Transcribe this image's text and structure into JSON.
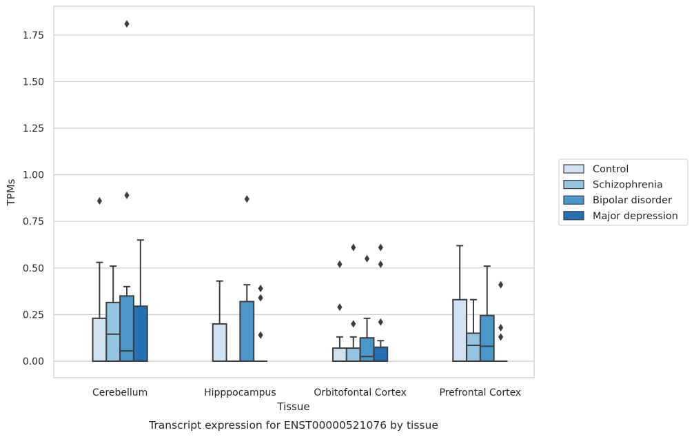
{
  "chart_data": {
    "type": "boxplot",
    "caption": "Transcript expression for ENST00000521076 by tissue",
    "xlabel": "Tissue",
    "ylabel": "TPMs",
    "ylim": [
      -0.09,
      1.93
    ],
    "yticks": [
      "0.00",
      "0.25",
      "0.50",
      "0.75",
      "1.00",
      "1.25",
      "1.50",
      "1.75"
    ],
    "grid": "horizontal",
    "legend_position": "right",
    "categories": [
      "Cerebellum",
      "Hipppocampus",
      "Orbitofontal Cortex",
      "Prefrontal Cortex"
    ],
    "series": [
      {
        "name": "Control",
        "color": "#d0e1f2",
        "boxes": [
          {
            "q1": 0.0,
            "median": 0.0,
            "q3": 0.23,
            "whisker_low": 0.0,
            "whisker_high": 0.53,
            "outliers": [
              0.86
            ]
          },
          {
            "q1": 0.0,
            "median": 0.0,
            "q3": 0.2,
            "whisker_low": 0.0,
            "whisker_high": 0.43,
            "outliers": []
          },
          {
            "q1": 0.0,
            "median": 0.0,
            "q3": 0.07,
            "whisker_low": 0.0,
            "whisker_high": 0.13,
            "outliers": [
              0.29,
              0.52
            ]
          },
          {
            "q1": 0.0,
            "median": 0.0,
            "q3": 0.33,
            "whisker_low": 0.0,
            "whisker_high": 0.62,
            "outliers": []
          }
        ]
      },
      {
        "name": "Schizophrenia",
        "color": "#94c4df",
        "boxes": [
          {
            "q1": 0.0,
            "median": 0.145,
            "q3": 0.315,
            "whisker_low": 0.0,
            "whisker_high": 0.51,
            "outliers": []
          },
          {
            "q1": 0.0,
            "median": 0.0,
            "q3": 0.0,
            "whisker_low": 0.0,
            "whisker_high": 0.0,
            "outliers": []
          },
          {
            "q1": 0.0,
            "median": 0.0,
            "q3": 0.07,
            "whisker_low": 0.0,
            "whisker_high": 0.13,
            "outliers": [
              0.2,
              0.61
            ]
          },
          {
            "q1": 0.0,
            "median": 0.085,
            "q3": 0.15,
            "whisker_low": 0.0,
            "whisker_high": 0.33,
            "outliers": []
          }
        ]
      },
      {
        "name": "Bipolar disorder",
        "color": "#4a98c9",
        "boxes": [
          {
            "q1": 0.0,
            "median": 0.055,
            "q3": 0.35,
            "whisker_low": 0.0,
            "whisker_high": 0.4,
            "outliers": [
              0.89,
              1.81
            ]
          },
          {
            "q1": 0.0,
            "median": 0.0,
            "q3": 0.32,
            "whisker_low": 0.0,
            "whisker_high": 0.41,
            "outliers": [
              0.87
            ]
          },
          {
            "q1": 0.0,
            "median": 0.025,
            "q3": 0.125,
            "whisker_low": 0.0,
            "whisker_high": 0.23,
            "outliers": [
              0.55
            ]
          },
          {
            "q1": 0.0,
            "median": 0.08,
            "q3": 0.245,
            "whisker_low": 0.0,
            "whisker_high": 0.51,
            "outliers": []
          }
        ]
      },
      {
        "name": "Major depression",
        "color": "#2271b5",
        "boxes": [
          {
            "q1": 0.0,
            "median": 0.0,
            "q3": 0.295,
            "whisker_low": 0.0,
            "whisker_high": 0.65,
            "outliers": []
          },
          {
            "q1": 0.0,
            "median": 0.0,
            "q3": 0.0,
            "whisker_low": 0.0,
            "whisker_high": 0.0,
            "outliers": [
              0.14,
              0.34,
              0.39
            ]
          },
          {
            "q1": 0.0,
            "median": 0.0,
            "q3": 0.075,
            "whisker_low": 0.0,
            "whisker_high": 0.11,
            "outliers": [
              0.21,
              0.52,
              0.61
            ]
          },
          {
            "q1": 0.0,
            "median": 0.0,
            "q3": 0.0,
            "whisker_low": 0.0,
            "whisker_high": 0.0,
            "outliers": [
              0.13,
              0.18,
              0.41
            ]
          }
        ]
      }
    ]
  }
}
